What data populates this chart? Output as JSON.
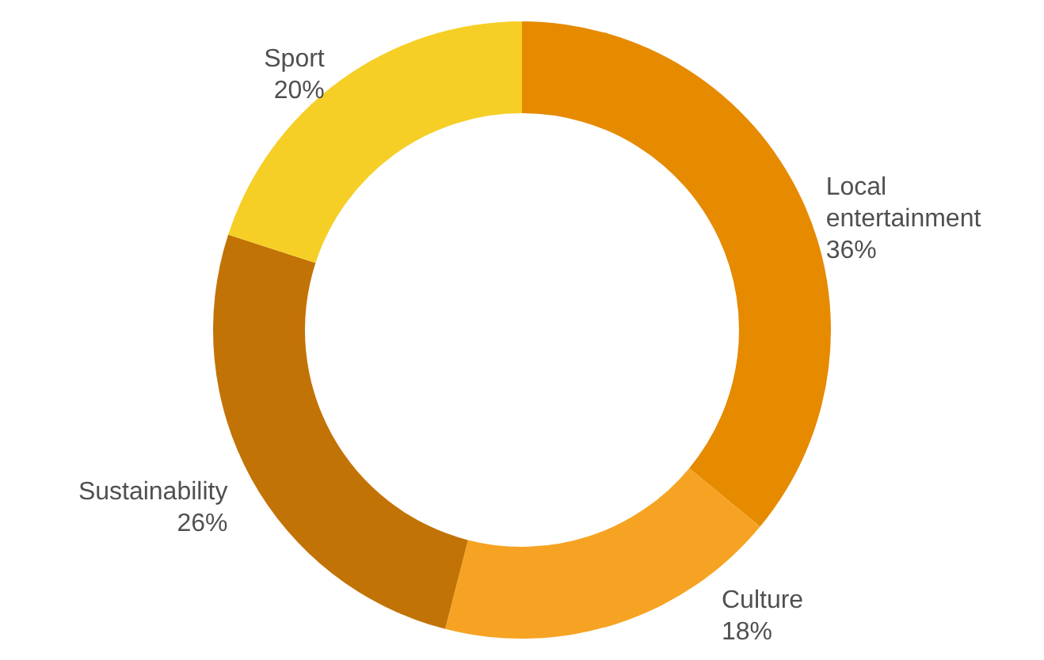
{
  "chart_data": {
    "type": "donut",
    "categories": [
      "Local entertainment",
      "Culture",
      "Sustainability",
      "Sport"
    ],
    "values": [
      36,
      18,
      26,
      20
    ],
    "value_labels": [
      "36%",
      "18%",
      "26%",
      "20%"
    ],
    "colors": [
      "#e68a00",
      "#f6a323",
      "#c27305",
      "#f5cf26"
    ]
  }
}
